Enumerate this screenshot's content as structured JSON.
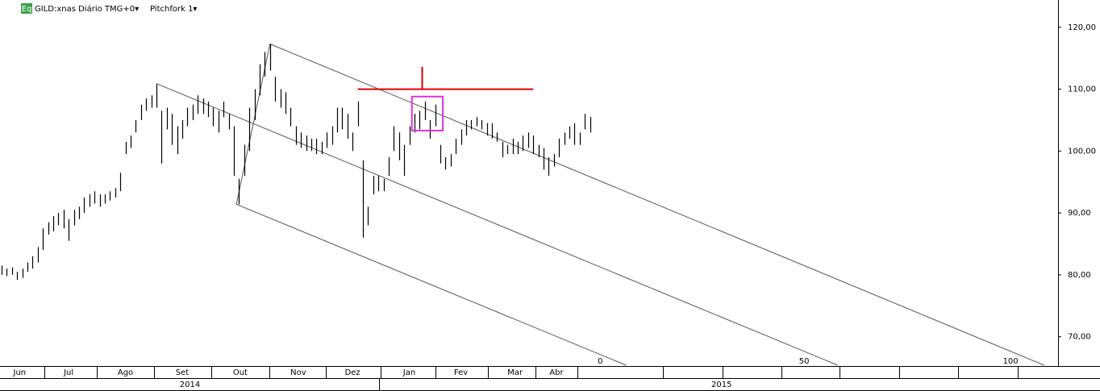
{
  "header": {
    "symbol_badge": "Eq",
    "instrument": "GILD:xnas Diário TMG+0▾",
    "study": "Pitchfork 1▾"
  },
  "chart_data": {
    "type": "ohlc",
    "x": [
      0,
      2,
      4,
      6,
      8,
      10,
      12,
      14,
      16,
      18,
      20,
      22,
      24,
      26,
      28,
      30,
      32,
      34,
      36,
      38,
      40,
      42,
      44,
      46,
      48,
      50,
      52,
      54,
      56,
      58,
      60,
      62,
      64,
      66,
      68,
      70,
      72,
      74,
      76,
      78,
      80,
      82,
      84,
      86,
      88,
      90,
      92,
      94,
      96,
      98,
      100,
      102,
      104,
      106,
      108,
      110,
      112,
      114,
      116,
      118,
      120,
      122,
      124,
      126,
      128,
      130,
      132,
      134,
      136,
      138,
      140,
      142,
      144,
      146,
      148,
      150,
      152,
      154,
      156,
      158,
      160,
      162,
      164,
      166,
      168,
      170,
      172,
      174,
      176,
      178,
      180,
      182,
      184,
      186,
      188,
      190,
      192,
      194,
      196,
      198,
      200,
      202,
      204,
      206,
      208,
      210,
      212,
      214,
      216,
      218,
      220,
      222,
      224,
      226,
      228
    ],
    "series": [
      {
        "color": "#000000",
        "high": [
          81.5,
          81,
          81.2,
          80.5,
          81,
          82,
          83,
          84.5,
          87.5,
          88.5,
          89.5,
          90,
          90.5,
          89,
          90.5,
          91,
          92.5,
          93,
          93.5,
          93,
          93,
          93.5,
          94,
          96.5,
          101.5,
          102.5,
          105,
          107.5,
          108.5,
          109,
          110.8,
          106.5,
          107,
          106,
          104,
          105,
          107,
          107.5,
          109,
          108.5,
          108,
          107,
          106.5,
          108,
          106,
          104,
          95.5,
          101,
          107,
          110,
          114,
          116,
          117.3,
          112,
          110,
          109.5,
          107,
          104,
          103,
          102.5,
          102,
          102,
          101.5,
          103,
          104,
          107,
          107,
          106,
          103,
          108,
          98.5,
          91,
          96,
          96,
          95.5,
          99,
          104,
          103,
          101,
          104,
          106,
          106.5,
          108,
          105,
          107.5,
          101,
          99,
          99.5,
          102,
          103.5,
          105,
          105,
          105.5,
          105,
          104.5,
          104.5,
          103,
          101.5,
          101,
          102,
          101.5,
          102.5,
          103,
          102.5,
          101,
          100.5,
          99,
          99.5,
          102,
          103,
          104,
          104.5,
          103,
          106,
          105.5
        ],
        "low": [
          80,
          79.8,
          80,
          79.2,
          79.5,
          80.5,
          81,
          82,
          84,
          86.5,
          87,
          88,
          87.5,
          85.5,
          88,
          89,
          90,
          91,
          91.5,
          91,
          91.5,
          92,
          92.5,
          93.5,
          99.5,
          100.5,
          103,
          105,
          106.5,
          107,
          107,
          98,
          103.5,
          101,
          99.5,
          102,
          104,
          105,
          106,
          106,
          105.5,
          104,
          103,
          105.5,
          103.5,
          96,
          91.4,
          96,
          100,
          105,
          109,
          112,
          113,
          108,
          107,
          106,
          104,
          101,
          100.5,
          100,
          100,
          99.5,
          99.5,
          100.5,
          101,
          103,
          103.5,
          102,
          100,
          104,
          86,
          88,
          93,
          93.5,
          93.5,
          96,
          100,
          98.5,
          96,
          101,
          103,
          103.5,
          105,
          102,
          104,
          98,
          97,
          97.5,
          99.5,
          101,
          102.5,
          103.5,
          104,
          103.5,
          102.5,
          102,
          101.5,
          99,
          99.5,
          99.5,
          99.5,
          100,
          100.5,
          99.5,
          99,
          97,
          96,
          97.5,
          99,
          101,
          102,
          101,
          101,
          103.5,
          103
        ]
      }
    ],
    "xlim": [
      -0.6,
      409.4
    ],
    "ylim": [
      65.4,
      124.4
    ],
    "yticks": [
      {
        "value": 70,
        "label": "70,00"
      },
      {
        "value": 80,
        "label": "80,00"
      },
      {
        "value": 90,
        "label": "90,00"
      },
      {
        "value": 100,
        "label": "100,00"
      },
      {
        "value": 110,
        "label": "110,00"
      },
      {
        "value": 120,
        "label": "120,00"
      }
    ],
    "xticks": [
      {
        "value": 7,
        "label": "Jun"
      },
      {
        "value": 26,
        "label": "Jul"
      },
      {
        "value": 48,
        "label": "Ago"
      },
      {
        "value": 70,
        "label": "Set"
      },
      {
        "value": 92.5,
        "label": "Out"
      },
      {
        "value": 115,
        "label": "Nov"
      },
      {
        "value": 136,
        "label": "Dez"
      },
      {
        "value": 158,
        "label": "Jan"
      },
      {
        "value": 178,
        "label": "Fev"
      },
      {
        "value": 199,
        "label": "Mar"
      },
      {
        "value": 215,
        "label": "Abr"
      }
    ],
    "year_ticks": [
      {
        "value": 73,
        "label": "2014"
      },
      {
        "value": 279,
        "label": "2015"
      }
    ],
    "bar_count_ticks": [
      {
        "value": 232,
        "label": "0"
      },
      {
        "value": 311,
        "label": "50"
      },
      {
        "value": 391,
        "label": "100"
      }
    ],
    "pitchfork": {
      "color": "#555555",
      "lines": [
        {
          "x": [
            104,
            404
          ],
          "y": [
            117.3,
            65.4
          ]
        },
        {
          "x": [
            60,
            324
          ],
          "y": [
            110.9,
            65.4
          ]
        },
        {
          "x": [
            91,
            242
          ],
          "y": [
            91.4,
            65.4
          ]
        },
        {
          "x": [
            91,
            104
          ],
          "y": [
            91.4,
            117.3
          ]
        }
      ]
    },
    "resistance": {
      "color": "#e00000",
      "x": [
        138,
        206
      ],
      "y": 110
    },
    "arrow": {
      "color": "#e00000",
      "x": 163,
      "y": [
        113.6,
        109.9
      ]
    },
    "box": {
      "color": "#dd33dd",
      "x": [
        159,
        171
      ],
      "y": [
        103.3,
        108.8
      ]
    }
  }
}
